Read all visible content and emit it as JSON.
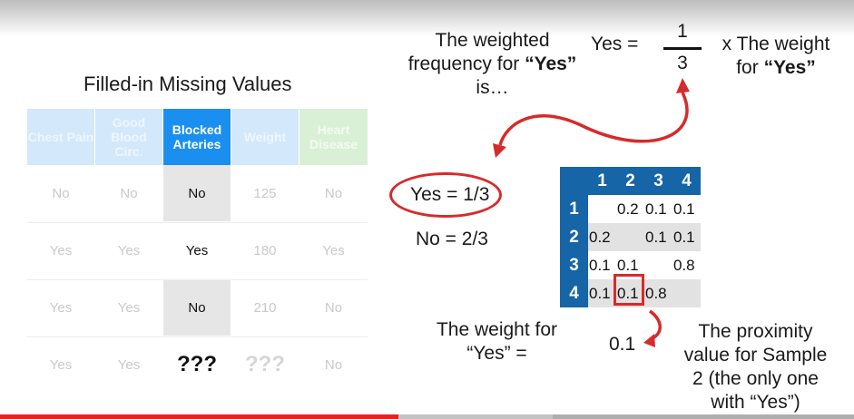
{
  "table": {
    "title": "Filled-in Missing Values",
    "headers": [
      "Chest Pain",
      "Good Blood Circ.",
      "Blocked Arteries",
      "Weight",
      "Heart Disease"
    ],
    "rows": [
      [
        "No",
        "No",
        "No",
        "125",
        "No"
      ],
      [
        "Yes",
        "Yes",
        "Yes",
        "180",
        "Yes"
      ],
      [
        "Yes",
        "Yes",
        "No",
        "210",
        "No"
      ],
      [
        "Yes",
        "Yes",
        "???",
        "???",
        "No"
      ]
    ]
  },
  "text": {
    "weighted_freq_l1": "The weighted",
    "weighted_freq_l2_a": "frequency for ",
    "weighted_freq_l2_b": "“Yes”",
    "weighted_freq_l3": "is…",
    "yes_eq": "Yes =",
    "frac_num": "1",
    "frac_den": "3",
    "times_weight_l1": "x The weight",
    "times_weight_l2_a": "for ",
    "times_weight_l2_b": "“Yes”",
    "yes_result": "Yes = 1/3",
    "no_result": "No = 2/3",
    "weight_for_l1": "The weight for",
    "weight_for_l2": "“Yes” =",
    "weight_value": "0.1",
    "proximity_l1": "The proximity",
    "proximity_l2": "value for Sample",
    "proximity_l3": "2 (the only one",
    "proximity_l4": "with “Yes”)"
  },
  "matrix": {
    "labels": [
      "1",
      "2",
      "3",
      "4"
    ],
    "cells": [
      [
        "",
        "0.2",
        "0.1",
        "0.1"
      ],
      [
        "0.2",
        "",
        "0.1",
        "0.1"
      ],
      [
        "0.1",
        "0.1",
        "",
        "0.8"
      ],
      [
        "0.1",
        "0.1",
        "0.8",
        ""
      ]
    ]
  },
  "colors": {
    "accent_red": "#d62b2b",
    "matrix_header": "#1565a7",
    "active_column": "#1a8ff0"
  },
  "progress": {
    "played_fraction": 0.466,
    "buffered_fraction": 0.647
  }
}
